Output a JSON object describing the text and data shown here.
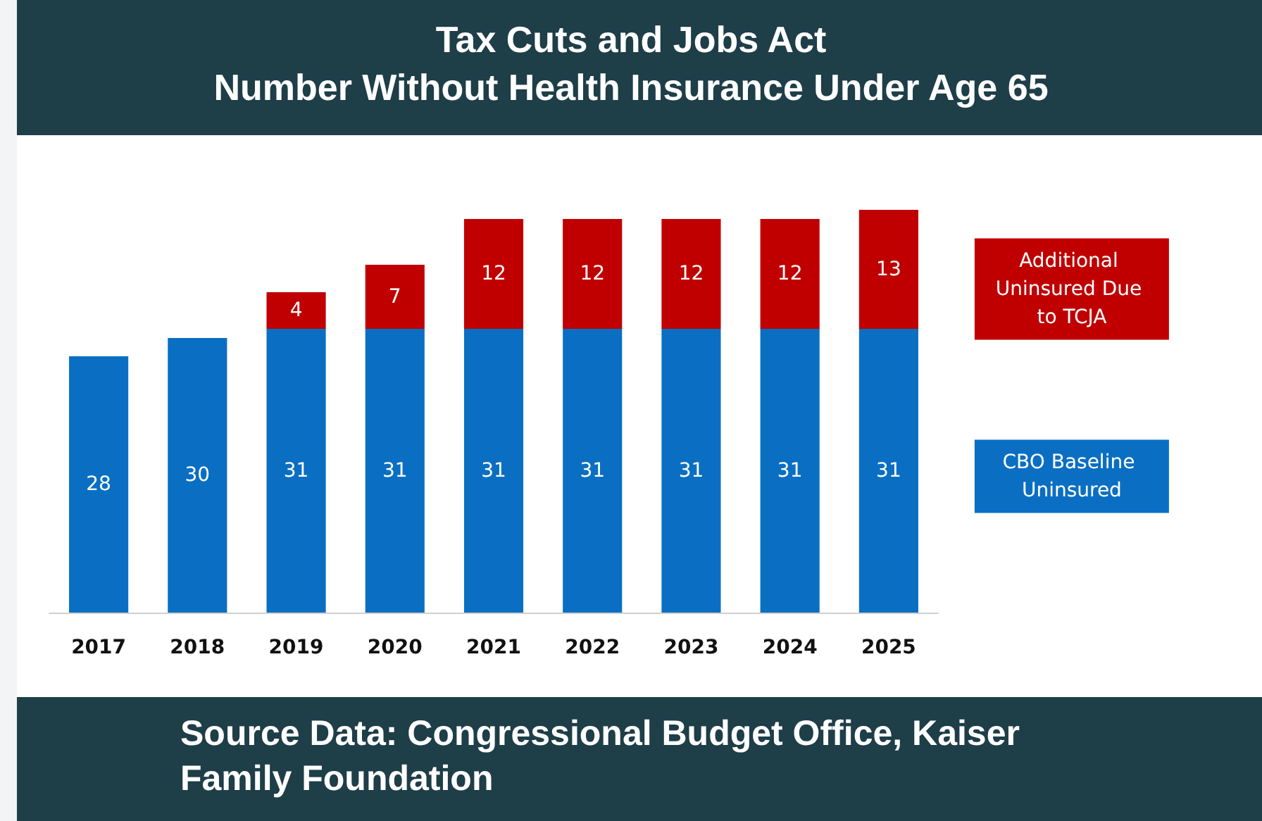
{
  "chart_data": {
    "type": "bar",
    "title": "Tax Cuts and Jobs Act\nNumber Without Health Insurance Under Age 65",
    "categories": [
      "2017",
      "2018",
      "2019",
      "2020",
      "2021",
      "2022",
      "2023",
      "2024",
      "2025"
    ],
    "series": [
      {
        "name": "CBO Baseline Uninsured",
        "color": "#0a6fc2",
        "values": [
          28,
          30,
          31,
          31,
          31,
          31,
          31,
          31,
          31
        ]
      },
      {
        "name": "Additional Uninsured Due to TCJA",
        "color": "#c00000",
        "values": [
          null,
          null,
          4,
          7,
          12,
          12,
          12,
          12,
          13
        ]
      }
    ],
    "stacked": true,
    "data_labels": true,
    "legend": "right",
    "grid": false,
    "annotations": [
      "Source Data: Congressional Budget Office, Kaiser Family Foundation"
    ]
  }
}
